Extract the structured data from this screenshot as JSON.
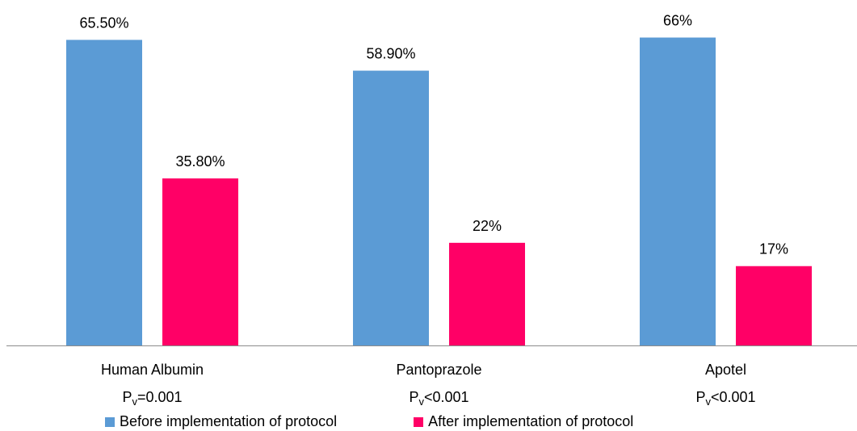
{
  "chart_data": {
    "type": "bar",
    "categories": [
      "Human Albumin",
      "Pantoprazole",
      "Apotel"
    ],
    "pvalues": [
      {
        "symbol": "P",
        "sub": "v",
        "rest": "=0.001"
      },
      {
        "symbol": "P",
        "sub": "v",
        "rest": "<0.001"
      },
      {
        "symbol": "P",
        "sub": "v",
        "rest": "<0.001"
      }
    ],
    "series": [
      {
        "name": "Before implementation of protocol",
        "color": "#5B9BD5",
        "values": [
          65.5,
          58.9,
          66
        ],
        "labels": [
          "65.50%",
          "58.90%",
          "66%"
        ]
      },
      {
        "name": "After implementation of protocol",
        "color": "#FF0066",
        "values": [
          35.8,
          22,
          17
        ],
        "labels": [
          "35.80%",
          "22%",
          "17%"
        ]
      }
    ],
    "ylim": [
      0,
      70
    ],
    "grid": false,
    "legend": "bottom"
  }
}
